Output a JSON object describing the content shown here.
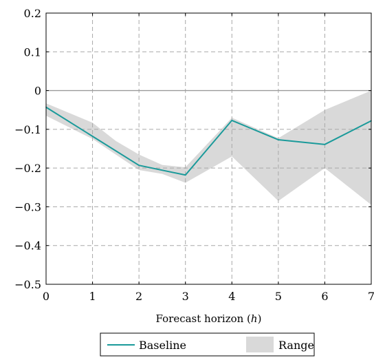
{
  "chart_data": {
    "type": "line",
    "title": "",
    "xlabel": "Forecast horizon (h)",
    "ylabel": "",
    "x": [
      0,
      1,
      2,
      3,
      4,
      5,
      6,
      7
    ],
    "xlim": [
      0,
      7
    ],
    "ylim": [
      -0.5,
      0.2
    ],
    "xticks": [
      "0",
      "1",
      "2",
      "3",
      "4",
      "5",
      "6",
      "7"
    ],
    "yticks": [
      0.2,
      0.1,
      0,
      -0.1,
      -0.2,
      -0.3,
      -0.4,
      -0.5
    ],
    "ytick_labels": [
      "0.2",
      "0.1",
      "0",
      "−0.1",
      "−0.2",
      "−0.3",
      "−0.4",
      "−0.5"
    ],
    "grid": true,
    "legend_position": "bottom",
    "series": [
      {
        "name": "Baseline",
        "kind": "line",
        "color": "#1a9a9a",
        "values": [
          -0.043,
          -0.118,
          -0.193,
          -0.218,
          -0.077,
          -0.127,
          -0.139,
          -0.078
        ]
      },
      {
        "name": "Range",
        "kind": "band",
        "color": "#d9d9d9",
        "x": [
          0,
          1,
          1.5,
          2,
          2.5,
          3,
          4,
          5,
          6,
          7
        ],
        "upper": [
          -0.033,
          -0.083,
          -0.13,
          -0.165,
          -0.192,
          -0.198,
          -0.07,
          -0.123,
          -0.05,
          0.0
        ],
        "lower": [
          -0.065,
          -0.125,
          -0.165,
          -0.205,
          -0.215,
          -0.238,
          -0.17,
          -0.285,
          -0.2,
          -0.295
        ]
      }
    ]
  }
}
